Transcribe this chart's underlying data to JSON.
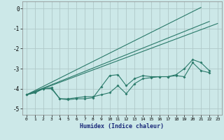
{
  "xlabel": "Humidex (Indice chaleur)",
  "series_wavy1": {
    "x": [
      0,
      1,
      2,
      3,
      4,
      5,
      6,
      7,
      8,
      9,
      10,
      11,
      12,
      13,
      14,
      15,
      16,
      17,
      18,
      19,
      20,
      21,
      22
    ],
    "y": [
      -4.3,
      -4.2,
      -4.0,
      -4.0,
      -4.5,
      -4.55,
      -4.5,
      -4.5,
      -4.45,
      -3.9,
      -3.35,
      -3.3,
      -3.85,
      -3.5,
      -3.35,
      -3.4,
      -3.4,
      -3.4,
      -3.35,
      -3.4,
      -2.7,
      -3.1,
      -3.2
    ]
  },
  "series_wavy2": {
    "x": [
      0,
      1,
      2,
      3,
      4,
      5,
      6,
      7,
      8,
      9,
      10,
      11,
      12,
      13,
      14,
      15,
      16,
      17,
      18,
      19,
      20,
      21,
      22
    ],
    "y": [
      -4.3,
      -4.2,
      -4.0,
      -3.95,
      -4.5,
      -4.5,
      -4.45,
      -4.4,
      -4.4,
      -4.3,
      -4.2,
      -3.85,
      -4.25,
      -3.75,
      -3.5,
      -3.45,
      -3.4,
      -3.4,
      -3.3,
      -3.0,
      -2.55,
      -2.7,
      -3.1
    ]
  },
  "diag1": {
    "x": [
      0,
      21
    ],
    "y": [
      -4.3,
      0.05
    ]
  },
  "diag2": {
    "x": [
      0,
      22
    ],
    "y": [
      -4.3,
      -0.65
    ]
  },
  "diag3": {
    "x": [
      0,
      23
    ],
    "y": [
      -4.3,
      -0.75
    ]
  },
  "bg_color": "#cce8e8",
  "grid_color": "#b0c8c8",
  "line_color": "#2a7a6a",
  "ylim": [
    -5.3,
    0.35
  ],
  "xlim": [
    -0.5,
    23.5
  ],
  "yticks": [
    0,
    -1,
    -2,
    -3,
    -4,
    -5
  ],
  "xticks": [
    0,
    1,
    2,
    3,
    4,
    5,
    6,
    7,
    8,
    9,
    10,
    11,
    12,
    13,
    14,
    15,
    16,
    17,
    18,
    19,
    20,
    21,
    22,
    23
  ]
}
